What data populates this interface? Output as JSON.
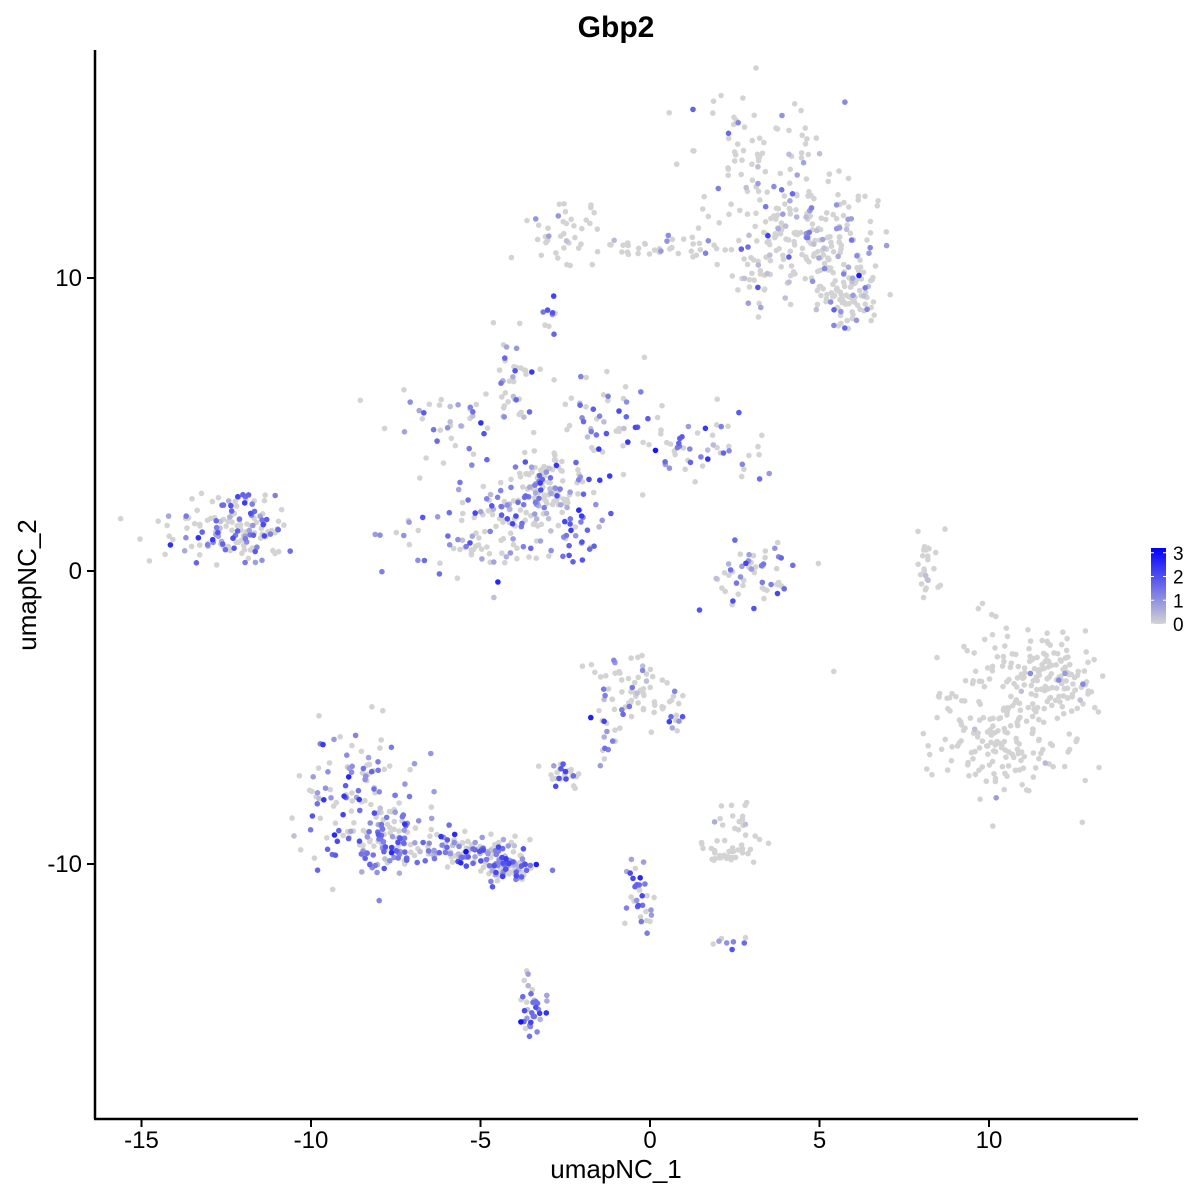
{
  "chart_data": {
    "type": "scatter",
    "title": "Gbp2",
    "xlabel": "umapNC_1",
    "ylabel": "umapNC_2",
    "xlim": [
      -16.5,
      14.5
    ],
    "ylim": [
      -18.5,
      17.8
    ],
    "x_ticks": [
      -15,
      -10,
      -5,
      0,
      5,
      10
    ],
    "x_tick_labels": [
      "-15",
      "-10",
      "-5",
      "0",
      "5",
      "10"
    ],
    "y_ticks": [
      -10,
      0,
      10
    ],
    "y_tick_labels": [
      "-10",
      "0",
      "10"
    ],
    "grid": false,
    "legend": {
      "position": "right",
      "type": "colorbar",
      "range": [
        0,
        3.2
      ],
      "ticks": [
        0,
        1,
        2,
        3
      ],
      "tick_labels": [
        "0",
        "1",
        "2",
        "3"
      ],
      "low_color": "#d3d3d3",
      "high_color": "#0000ff"
    },
    "clusters": [
      {
        "name": "top-right-cluster",
        "n": 380,
        "blobs": [
          [
            3.0,
            14.3,
            1.0,
            1.2,
            0.8
          ],
          [
            4.2,
            12.0,
            0.9,
            1.0,
            0.9
          ],
          [
            5.3,
            11.3,
            0.7,
            0.8,
            0.9
          ],
          [
            5.8,
            9.4,
            0.5,
            0.5,
            0.9
          ],
          [
            3.5,
            10.2,
            0.8,
            0.8,
            0.5
          ]
        ],
        "expr_prob": 0.2,
        "expr_mean": 0.8
      },
      {
        "name": "top-arm",
        "n": 80,
        "blobs": [
          [
            -2.5,
            11.5,
            0.7,
            0.5,
            0.9
          ],
          [
            -0.2,
            11.0,
            0.8,
            0.15,
            0.5
          ],
          [
            1.5,
            11.1,
            0.5,
            0.35,
            0.5
          ]
        ],
        "expr_prob": 0.15,
        "expr_mean": 0.7
      },
      {
        "name": "small-top-fragment",
        "n": 10,
        "blobs": [
          [
            -3.0,
            8.6,
            0.15,
            0.35,
            0.5
          ]
        ],
        "expr_prob": 0.8,
        "expr_mean": 1.5
      },
      {
        "name": "center-hub",
        "n": 420,
        "blobs": [
          [
            -5.6,
            1.0,
            1.0,
            0.9,
            0.8
          ],
          [
            -4.0,
            1.8,
            0.7,
            0.8,
            0.8
          ],
          [
            -3.0,
            2.8,
            0.6,
            0.6,
            1.3
          ],
          [
            -1.2,
            5.3,
            0.7,
            0.8,
            0.5
          ],
          [
            1.5,
            4.3,
            0.9,
            0.6,
            0.5
          ],
          [
            -6.0,
            4.8,
            1.0,
            0.7,
            0.4
          ],
          [
            -4.0,
            6.5,
            0.3,
            0.7,
            0.4
          ]
        ],
        "expr_prob": 0.4,
        "expr_mean": 1.2
      },
      {
        "name": "center-tail",
        "n": 25,
        "blobs": [
          [
            -2.2,
            1.2,
            0.4,
            0.5,
            0.6
          ]
        ],
        "expr_prob": 0.9,
        "expr_mean": 1.5
      },
      {
        "name": "left-cluster",
        "n": 150,
        "blobs": [
          [
            -12.8,
            1.3,
            1.1,
            0.6,
            0.6
          ],
          [
            -12.0,
            1.2,
            0.6,
            0.4,
            1.0
          ],
          [
            -12.0,
            2.4,
            0.5,
            0.3,
            0.4
          ]
        ],
        "expr_prob": 0.45,
        "expr_mean": 1.3
      },
      {
        "name": "small-center-right",
        "n": 55,
        "blobs": [
          [
            3.1,
            -0.1,
            0.7,
            0.6,
            0.7
          ]
        ],
        "expr_prob": 0.4,
        "expr_mean": 1.3
      },
      {
        "name": "right-cluster",
        "n": 330,
        "blobs": [
          [
            10.7,
            -4.5,
            1.1,
            1.4,
            0.8
          ],
          [
            10.1,
            -6.0,
            1.0,
            0.7,
            0.6
          ],
          [
            11.8,
            -3.6,
            0.6,
            0.6,
            0.7
          ]
        ],
        "expr_prob": 0.03,
        "expr_mean": 0.6
      },
      {
        "name": "middle-small-arm",
        "n": 25,
        "blobs": [
          [
            8.2,
            0.2,
            0.2,
            0.6,
            0.6
          ]
        ],
        "expr_prob": 0.1,
        "expr_mean": 0.5
      },
      {
        "name": "bottom-left-cluster",
        "n": 420,
        "blobs": [
          [
            -8.6,
            -7.8,
            0.9,
            1.3,
            0.9
          ],
          [
            -7.6,
            -9.2,
            0.5,
            0.6,
            0.7
          ],
          [
            -5.5,
            -9.5,
            0.8,
            0.3,
            0.8
          ],
          [
            -4.2,
            -10.1,
            0.4,
            0.2,
            0.6
          ]
        ],
        "expr_prob": 0.55,
        "expr_mean": 1.3
      },
      {
        "name": "bottom-center-cluster",
        "n": 90,
        "blobs": [
          [
            -0.6,
            -4.0,
            0.7,
            0.6,
            1.0
          ],
          [
            -1.3,
            -5.4,
            0.2,
            0.6,
            0.4
          ],
          [
            0.8,
            -5.0,
            0.2,
            0.5,
            0.4
          ]
        ],
        "expr_prob": 0.35,
        "expr_mean": 1.2
      },
      {
        "name": "bottom-small-left",
        "n": 30,
        "blobs": [
          [
            -2.6,
            -6.9,
            0.3,
            0.2,
            0.5
          ]
        ],
        "expr_prob": 0.3,
        "expr_mean": 1.3
      },
      {
        "name": "bottom-small-right",
        "n": 50,
        "blobs": [
          [
            2.3,
            -9.5,
            0.5,
            0.3,
            0.6
          ],
          [
            2.6,
            -8.7,
            0.3,
            0.4,
            0.4
          ]
        ],
        "expr_prob": 0.05,
        "expr_mean": 0.5
      },
      {
        "name": "bottom-stem",
        "n": 40,
        "blobs": [
          [
            -0.3,
            -11.0,
            0.25,
            0.6,
            0.6
          ],
          [
            2.4,
            -12.7,
            0.3,
            0.15,
            0.3
          ]
        ],
        "expr_prob": 0.6,
        "expr_mean": 1.3
      },
      {
        "name": "bottom-tip",
        "n": 35,
        "blobs": [
          [
            -3.5,
            -14.8,
            0.2,
            0.5,
            0.6
          ]
        ],
        "expr_prob": 0.7,
        "expr_mean": 1.3
      }
    ]
  }
}
